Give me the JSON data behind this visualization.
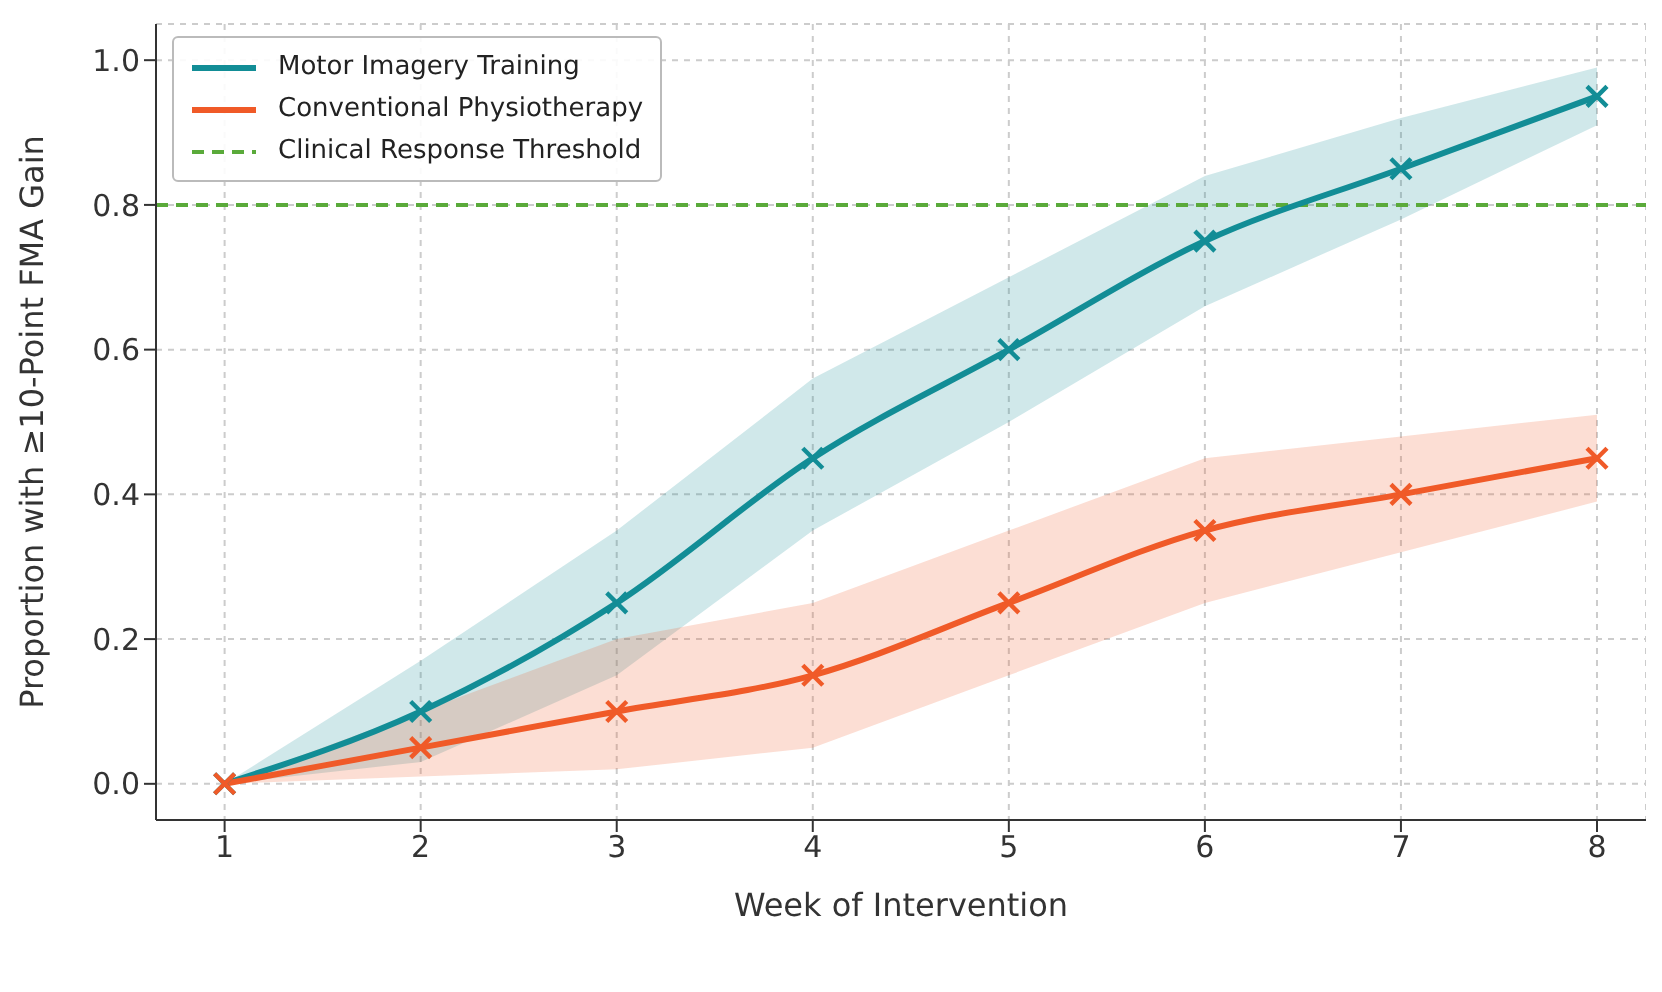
{
  "chart_data": {
    "type": "line",
    "xlabel": "Week of Intervention",
    "ylabel": "Proportion with ≥10-Point FMA Gain",
    "x": [
      1,
      2,
      3,
      4,
      5,
      6,
      7,
      8
    ],
    "xlim": [
      0.65,
      8.25
    ],
    "xticks": [
      1,
      2,
      3,
      4,
      5,
      6,
      7,
      8
    ],
    "ylim": [
      -0.05,
      1.05
    ],
    "yticks": [
      {
        "value": 0,
        "label": "0.0"
      },
      0.2,
      0.4,
      0.6,
      0.8,
      {
        "value": 1,
        "label": "1.0"
      }
    ],
    "grid": true,
    "legend": "top left",
    "marker": "cross",
    "line_style": "solid",
    "series": [
      {
        "name": "Motor Imagery Training",
        "color": "#128d96",
        "values": [
          0,
          0.1,
          0.25,
          0.45,
          0.6,
          0.75,
          0.85,
          0.95
        ],
        "lower": [
          0,
          0.03,
          0.15,
          0.35,
          0.5,
          0.66,
          0.78,
          0.91
        ],
        "upper": [
          0,
          0.17,
          0.35,
          0.56,
          0.7,
          0.84,
          0.92,
          0.99
        ]
      },
      {
        "name": "Conventional Physiotherapy",
        "color": "#f05a28",
        "values": [
          0,
          0.05,
          0.1,
          0.15,
          0.25,
          0.35,
          0.4,
          0.45
        ],
        "lower": [
          0,
          0.01,
          0.02,
          0.05,
          0.15,
          0.25,
          0.32,
          0.39
        ],
        "upper": [
          0,
          0.1,
          0.2,
          0.25,
          0.35,
          0.45,
          0.48,
          0.51
        ]
      }
    ],
    "ref_lines": [
      {
        "axis": "y",
        "value": 0.8,
        "label": "Clinical Response Threshold",
        "color": "#5aaa3a",
        "line_style": "dashed"
      }
    ]
  }
}
